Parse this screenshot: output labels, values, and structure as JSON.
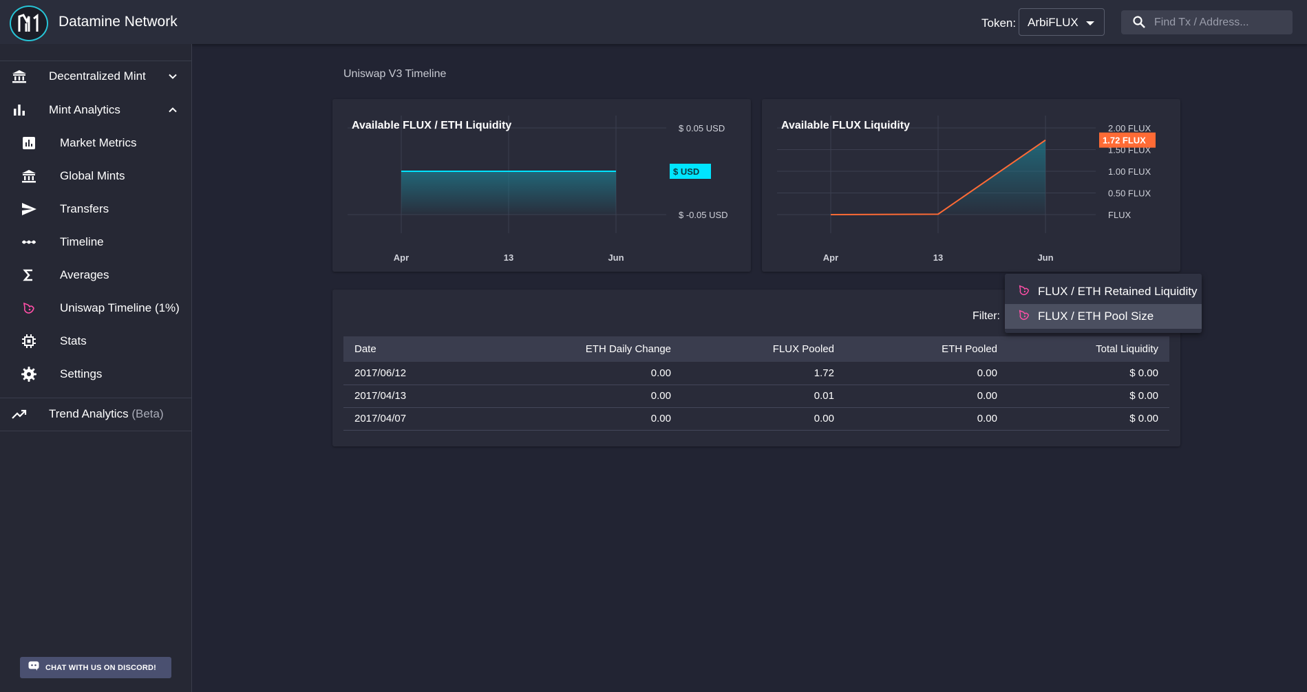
{
  "app": {
    "title": "Datamine Network"
  },
  "header": {
    "token_label": "Token:",
    "token_value": "ArbiFLUX",
    "search_placeholder": "Find Tx / Address..."
  },
  "sidebar": {
    "groups": [
      {
        "label": "Decentralized Mint",
        "icon": "bank-icon",
        "expanded": false
      },
      {
        "label": "Mint Analytics",
        "icon": "bar-chart-icon",
        "expanded": true
      }
    ],
    "items": [
      {
        "label": "Market Metrics",
        "icon": "analytics-icon"
      },
      {
        "label": "Global Mints",
        "icon": "bank-icon"
      },
      {
        "label": "Transfers",
        "icon": "send-icon"
      },
      {
        "label": "Timeline",
        "icon": "timeline-icon"
      },
      {
        "label": "Averages",
        "icon": "sigma-icon"
      },
      {
        "label": "Uniswap Timeline (1%)",
        "icon": "uniswap-icon"
      },
      {
        "label": "Stats",
        "icon": "chip-icon"
      },
      {
        "label": "Settings",
        "icon": "gear-icon"
      }
    ],
    "trend": {
      "label": "Trend Analytics",
      "beta": "(Beta)",
      "icon": "trending-up-icon"
    },
    "discord_label": "CHAT WITH US ON DISCORD!"
  },
  "main": {
    "page_title": "Uniswap V3 Timeline"
  },
  "charts": {
    "left": {
      "title": "Available FLUX / ETH Liquidity",
      "y_ticks": [
        "$ 0.05 USD",
        "$ -0.05 USD"
      ],
      "current_badge": "$  USD",
      "x_ticks": [
        "Apr",
        "13",
        "Jun"
      ],
      "accent": "#00e5ff"
    },
    "right": {
      "title": "Available FLUX Liquidity",
      "y_ticks": [
        "2.00 FLUX",
        "1.50 FLUX",
        "1.00 FLUX",
        "0.50 FLUX",
        "FLUX"
      ],
      "current_badge": "1.72 FLUX",
      "x_ticks": [
        "Apr",
        "13",
        "Jun"
      ],
      "accent": "#ff6b35"
    }
  },
  "chart_data": [
    {
      "type": "area",
      "title": "Available FLUX / ETH Liquidity",
      "x": [
        "2017/04/07",
        "2017/04/13",
        "2017/06/12"
      ],
      "values": [
        0,
        0,
        0
      ],
      "ylim": [
        -0.05,
        0.05
      ],
      "x_tick_labels": [
        "Apr",
        "13",
        "Jun"
      ],
      "grid": true
    },
    {
      "type": "area",
      "title": "Available FLUX Liquidity",
      "x": [
        "2017/04/07",
        "2017/04/13",
        "2017/06/12"
      ],
      "values": [
        0.0,
        0.01,
        1.72
      ],
      "ylim": [
        0,
        2.0
      ],
      "x_tick_labels": [
        "Apr",
        "13",
        "Jun"
      ],
      "grid": true
    }
  ],
  "filter": {
    "label": "Filter:",
    "options": [
      {
        "label": "FLUX / ETH Retained Liquidity",
        "icon": "uniswap-icon",
        "selected": false
      },
      {
        "label": "FLUX / ETH Pool Size",
        "icon": "uniswap-icon",
        "selected": true
      }
    ]
  },
  "table": {
    "headers": [
      "Date",
      "ETH Daily Change",
      "FLUX Pooled",
      "ETH Pooled",
      "Total Liquidity"
    ],
    "rows": [
      [
        "2017/06/12",
        "0.00",
        "1.72",
        "0.00",
        "$ 0.00"
      ],
      [
        "2017/04/13",
        "0.00",
        "0.01",
        "0.00",
        "$ 0.00"
      ],
      [
        "2017/04/07",
        "0.00",
        "0.00",
        "0.00",
        "$ 0.00"
      ]
    ]
  }
}
